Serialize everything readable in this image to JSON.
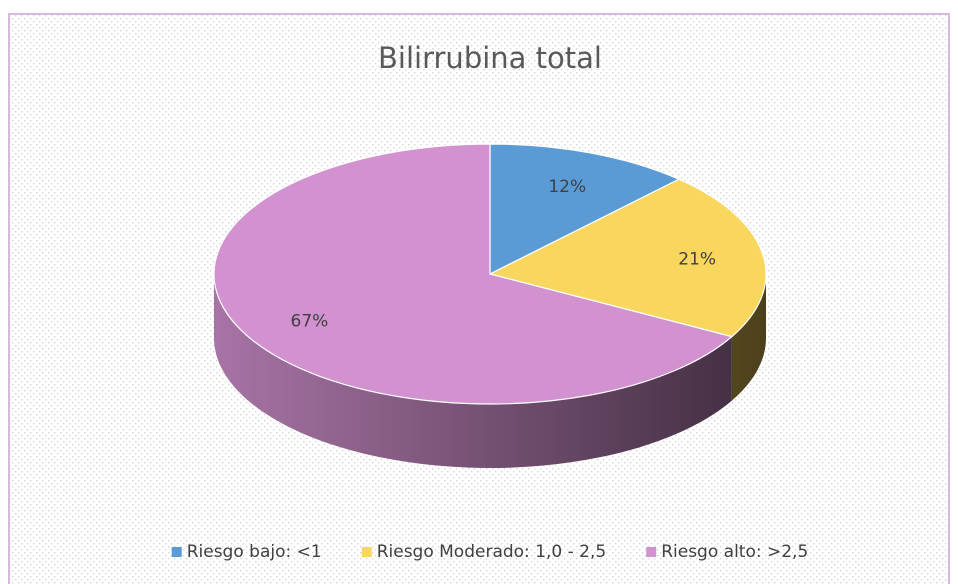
{
  "chart_data": {
    "type": "pie",
    "title": "Bilirrubina total",
    "categories": [
      "Riesgo bajo: <1",
      "Riesgo Moderado: 1,0 - 2,5",
      "Riesgo alto: >2,5"
    ],
    "values": [
      12,
      21,
      67
    ],
    "value_labels": [
      "12%",
      "21%",
      "67%"
    ],
    "colors": [
      "#5b9bd5",
      "#f9d65e",
      "#d291cf"
    ],
    "legend": "bottom"
  }
}
